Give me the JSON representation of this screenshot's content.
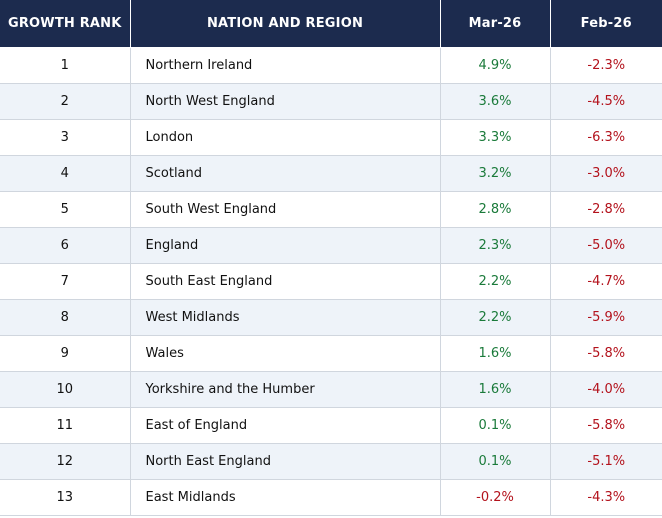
{
  "table": {
    "headers": [
      "GROWTH RANK",
      "NATION AND REGION",
      "Mar-26",
      "Feb-26"
    ],
    "rows": [
      {
        "rank": "1",
        "region": "Northern Ireland",
        "mar": "4.9%",
        "feb": "-2.3%"
      },
      {
        "rank": "2",
        "region": "North West England",
        "mar": "3.6%",
        "feb": "-4.5%"
      },
      {
        "rank": "3",
        "region": "London",
        "mar": "3.3%",
        "feb": "-6.3%"
      },
      {
        "rank": "4",
        "region": "Scotland",
        "mar": "3.2%",
        "feb": "-3.0%"
      },
      {
        "rank": "5",
        "region": "South West England",
        "mar": "2.8%",
        "feb": "-2.8%"
      },
      {
        "rank": "6",
        "region": "England",
        "mar": "2.3%",
        "feb": "-5.0%"
      },
      {
        "rank": "7",
        "region": "South East England",
        "mar": "2.2%",
        "feb": "-4.7%"
      },
      {
        "rank": "8",
        "region": "West Midlands",
        "mar": "2.2%",
        "feb": "-5.9%"
      },
      {
        "rank": "9",
        "region": "Wales",
        "mar": "1.6%",
        "feb": "-5.8%"
      },
      {
        "rank": "10",
        "region": "Yorkshire and the Humber",
        "mar": "1.6%",
        "feb": "-4.0%"
      },
      {
        "rank": "11",
        "region": "East of England",
        "mar": "0.1%",
        "feb": "-5.8%"
      },
      {
        "rank": "12",
        "region": "North East England",
        "mar": "0.1%",
        "feb": "-5.1%"
      },
      {
        "rank": "13",
        "region": "East Midlands",
        "mar": "-0.2%",
        "feb": "-4.3%"
      }
    ]
  },
  "colors": {
    "header_bg": "#1c2b4e",
    "positive": "#1a7a3a",
    "negative": "#b3121c",
    "stripe": "#eef3f9"
  }
}
